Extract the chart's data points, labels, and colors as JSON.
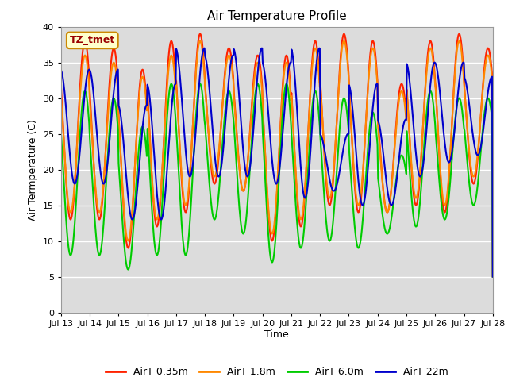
{
  "title": "Air Temperature Profile",
  "xlabel": "Time",
  "ylabel": "Air Termperature (C)",
  "ylim": [
    0,
    40
  ],
  "yticks": [
    0,
    5,
    10,
    15,
    20,
    25,
    30,
    35,
    40
  ],
  "bg_color": "#dcdcdc",
  "fig_color": "#ffffff",
  "grid_color": "#ffffff",
  "annotation_text": "TZ_tmet",
  "annotation_bg": "#ffffcc",
  "annotation_border": "#cc8800",
  "annotation_text_color": "#990000",
  "line_colors": {
    "AirT 0.35m": "#ff2200",
    "AirT 1.8m": "#ff8800",
    "AirT 6.0m": "#00cc00",
    "AirT 22m": "#0000cc"
  },
  "line_width": 1.5,
  "legend_labels": [
    "AirT 0.35m",
    "AirT 1.8m",
    "AirT 6.0m",
    "AirT 22m"
  ],
  "x_tick_labels": [
    "Jul 13",
    "Jul 14",
    "Jul 15",
    "Jul 16",
    "Jul 17",
    "Jul 18",
    "Jul 19",
    "Jul 20",
    "Jul 21",
    "Jul 22",
    "Jul 23",
    "Jul 24",
    "Jul 25",
    "Jul 26",
    "Jul 27",
    "Jul 28"
  ],
  "x_tick_positions": [
    0,
    1,
    2,
    3,
    4,
    5,
    6,
    7,
    8,
    9,
    10,
    11,
    12,
    13,
    14,
    15
  ]
}
